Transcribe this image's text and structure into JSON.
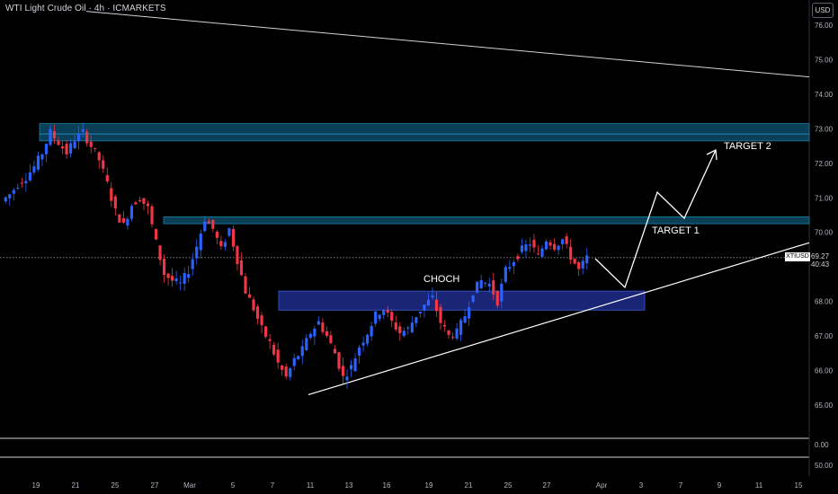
{
  "header": {
    "title": "WTI Light Crude Oil · 4h · ICMARKETS"
  },
  "price_axis": {
    "currency": "USD"
  },
  "symbol_tag": "XTIUSD",
  "last_price": "69.27",
  "countdown": "40:43",
  "colors": {
    "background": "#000000",
    "bull": "#2962ff",
    "bear": "#f23645",
    "zone": "#0e4f6e",
    "demand_zone": "#1e2d8a",
    "annotation": "#ffffff",
    "text": "#b2b5be"
  },
  "annotations": {
    "target1": "TARGET 1",
    "target2": "TARGET 2",
    "choch": "CHOCH"
  },
  "chart_data": {
    "type": "candlestick",
    "title": "WTI Light Crude Oil · 4h · ICMARKETS",
    "y_ticks": [
      "76.00",
      "75.00",
      "74.00",
      "73.00",
      "72.00",
      "71.00",
      "70.00",
      "68.00",
      "67.00",
      "66.00",
      "65.00"
    ],
    "ylim": [
      64.4,
      76.4
    ],
    "x_ticks": [
      "19",
      "21",
      "25",
      "27",
      "Mar",
      "5",
      "7",
      "11",
      "13",
      "16",
      "19",
      "21",
      "25",
      "27",
      "Apr",
      "3",
      "7",
      "9",
      "11",
      "15"
    ],
    "indicator_pane": {
      "ticks": [
        "0.00",
        "50.00"
      ]
    },
    "series": [
      {
        "name": "XTIUSD",
        "description": "approximate price path (close values) read from the chart",
        "values": [
          70.9,
          71.1,
          71.4,
          71.6,
          71.9,
          72.3,
          72.9,
          72.6,
          72.3,
          72.7,
          72.9,
          72.5,
          72.1,
          71.4,
          70.6,
          70.2,
          70.8,
          71.0,
          70.7,
          69.7,
          68.8,
          68.6,
          68.5,
          68.9,
          69.6,
          70.4,
          70.1,
          69.5,
          70.1,
          69.2,
          68.3,
          67.8,
          67.2,
          66.8,
          66.2,
          65.8,
          66.3,
          66.6,
          67.1,
          67.4,
          67.0,
          66.5,
          65.8,
          66.1,
          66.7,
          67.1,
          67.6,
          67.8,
          67.4,
          67.1,
          67.2,
          67.6,
          67.9,
          68.1,
          67.4,
          67.0,
          67.1,
          67.6,
          68.3,
          68.6,
          68.5,
          68.0,
          68.9,
          69.2,
          69.5,
          69.7,
          69.3,
          69.8,
          69.6,
          69.8,
          69.3,
          68.9,
          69.27
        ]
      }
    ],
    "levels": [
      {
        "name": "resistance-zone-upper",
        "from": 72.65,
        "to": 73.15
      },
      {
        "name": "resistance-zone-lower",
        "from": 70.25,
        "to": 70.45
      },
      {
        "name": "demand-zone",
        "from": 67.75,
        "to": 68.3
      }
    ],
    "current_price": 69.27
  }
}
